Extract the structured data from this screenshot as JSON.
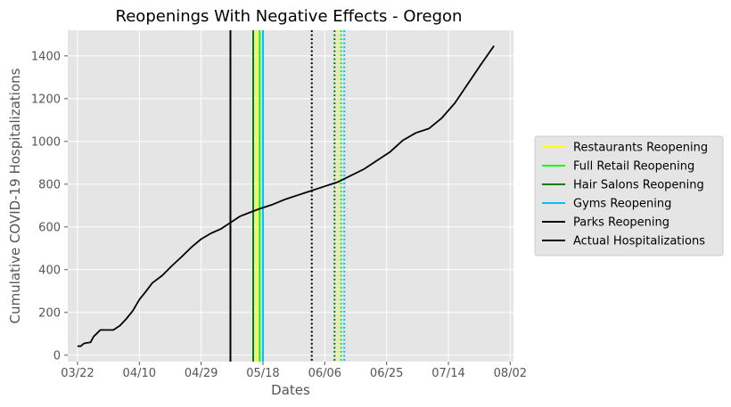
{
  "chart_data": {
    "type": "line",
    "title": "Reopenings With Negative Effects - Oregon",
    "xlabel": "Dates",
    "ylabel": "Cumulative COVID-19 Hospitalizations",
    "x_ticks": [
      "03/22",
      "04/10",
      "04/29",
      "05/18",
      "06/06",
      "06/25",
      "07/14",
      "08/02"
    ],
    "y_ticks": [
      "0",
      "200",
      "400",
      "600",
      "800",
      "1000",
      "1200",
      "1400"
    ],
    "xlim": [
      "2020-03-19",
      "2020-08-03"
    ],
    "ylim": [
      -30,
      1520
    ],
    "grid": true,
    "legend_position": "right",
    "legend": [
      {
        "label": "Restaurants Reopening",
        "color": "#ffff00"
      },
      {
        "label": "Full Retail Reopening",
        "color": "#00ff00"
      },
      {
        "label": "Hair Salons Reopening",
        "color": "#008000"
      },
      {
        "label": "Gyms Reopening",
        "color": "#00bfff"
      },
      {
        "label": "Parks Reopening",
        "color": "#000000"
      },
      {
        "label": "Actual Hospitalizations",
        "color": "#000000"
      }
    ],
    "reopening_lines": [
      {
        "date": "2020-05-08",
        "color": "#000000",
        "style": "solid"
      },
      {
        "date": "2020-05-15",
        "color": "#008000",
        "style": "solid"
      },
      {
        "date": "2020-05-16",
        "color": "#ffff00",
        "style": "solid"
      },
      {
        "date": "2020-05-17",
        "color": "#00ff00",
        "style": "solid"
      },
      {
        "date": "2020-05-18",
        "color": "#00bfff",
        "style": "solid"
      },
      {
        "date": "2020-06-02",
        "color": "#000000",
        "style": "dotted"
      },
      {
        "date": "2020-06-09",
        "color": "#008000",
        "style": "dotted"
      },
      {
        "date": "2020-06-10",
        "color": "#ffff00",
        "style": "dotted"
      },
      {
        "date": "2020-06-11",
        "color": "#00ff00",
        "style": "dotted"
      },
      {
        "date": "2020-06-12",
        "color": "#00bfff",
        "style": "dotted"
      }
    ],
    "series": [
      {
        "color": "#000000",
        "x": [
          "2020-03-22",
          "2020-03-23",
          "2020-03-24",
          "2020-03-25",
          "2020-03-26",
          "2020-03-27",
          "2020-03-28",
          "2020-03-29",
          "2020-03-31",
          "2020-04-02",
          "2020-04-04",
          "2020-04-06",
          "2020-04-08",
          "2020-04-10",
          "2020-04-12",
          "2020-04-14",
          "2020-04-17",
          "2020-04-20",
          "2020-04-23",
          "2020-04-26",
          "2020-04-29",
          "2020-05-02",
          "2020-05-05",
          "2020-05-08",
          "2020-05-11",
          "2020-05-14",
          "2020-05-17",
          "2020-05-21",
          "2020-05-25",
          "2020-05-29",
          "2020-06-02",
          "2020-06-06",
          "2020-06-10",
          "2020-06-14",
          "2020-06-18",
          "2020-06-22",
          "2020-06-26",
          "2020-06-30",
          "2020-07-04",
          "2020-07-08",
          "2020-07-12",
          "2020-07-16",
          "2020-07-20",
          "2020-07-24",
          "2020-07-28"
        ],
        "y": [
          42,
          42,
          55,
          58,
          60,
          88,
          102,
          118,
          118,
          118,
          138,
          170,
          208,
          260,
          298,
          338,
          372,
          418,
          460,
          505,
          543,
          570,
          590,
          620,
          650,
          668,
          685,
          705,
          730,
          750,
          770,
          790,
          810,
          840,
          870,
          910,
          950,
          1005,
          1040,
          1060,
          1110,
          1180,
          1270,
          1360,
          1447
        ]
      }
    ]
  }
}
